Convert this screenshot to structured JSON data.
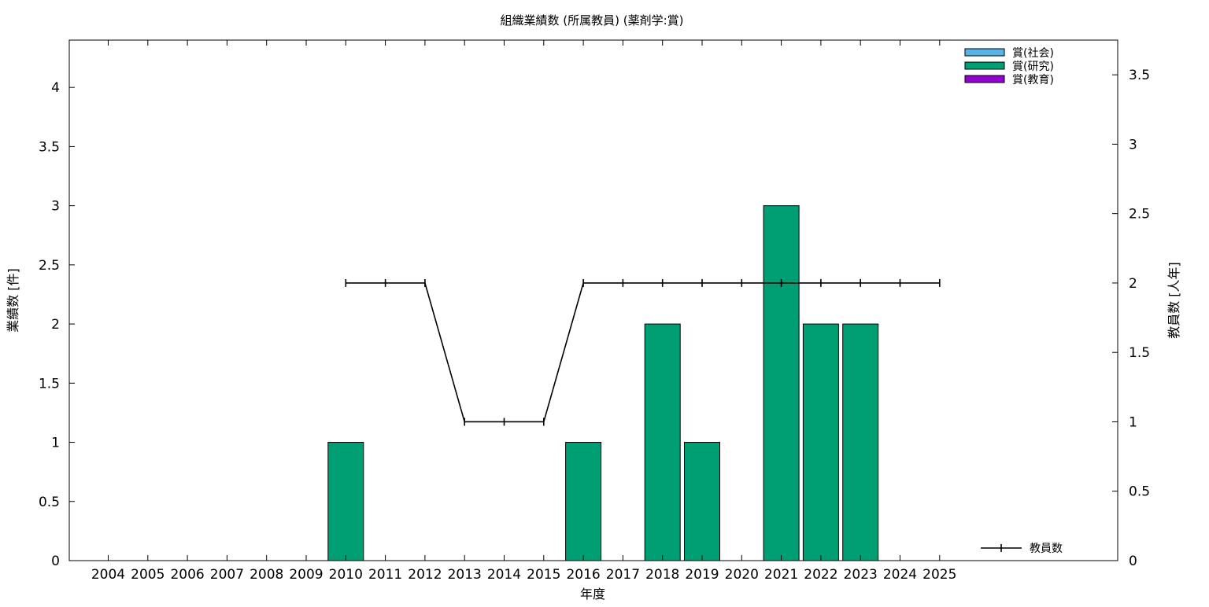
{
  "chart_data": {
    "type": "bar",
    "title": "組織業績数 (所属教員) (薬剤学:賞)",
    "xlabel": "年度",
    "ylabel": "業績数 [件]",
    "y2label": "教員数 [人年]",
    "categories": [
      "2004",
      "2005",
      "2006",
      "2007",
      "2008",
      "2009",
      "2010",
      "2011",
      "2012",
      "2013",
      "2014",
      "2015",
      "2016",
      "2017",
      "2018",
      "2019",
      "2020",
      "2021",
      "2022",
      "2023",
      "2024",
      "2025"
    ],
    "ylim": [
      0,
      4.4
    ],
    "y2lim": [
      0,
      3.75
    ],
    "yticks": [
      "0",
      "0.5",
      "1",
      "1.5",
      "2",
      "2.5",
      "3",
      "3.5",
      "4"
    ],
    "y2ticks": [
      "0",
      "0.5",
      "1",
      "1.5",
      "2",
      "2.5",
      "3",
      "3.5"
    ],
    "series": [
      {
        "name": "賞(社会)",
        "kind": "bar",
        "color": "#56b4e9",
        "values": [
          0,
          0,
          0,
          0,
          0,
          0,
          0,
          0,
          0,
          0,
          0,
          0,
          0,
          0,
          0,
          0,
          0,
          0,
          0,
          0,
          0,
          0
        ]
      },
      {
        "name": "賞(研究)",
        "kind": "bar",
        "color": "#009e73",
        "values": [
          0,
          0,
          0,
          0,
          0,
          0,
          1,
          0,
          0,
          0,
          0,
          0,
          1,
          0,
          2,
          1,
          0,
          3,
          2,
          2,
          0,
          0
        ]
      },
      {
        "name": "賞(教育)",
        "kind": "bar",
        "color": "#9400d3",
        "values": [
          0,
          0,
          0,
          0,
          0,
          0,
          0,
          0,
          0,
          0,
          0,
          0,
          0,
          0,
          0,
          0,
          0,
          0,
          0,
          0,
          0,
          0
        ]
      },
      {
        "name": "教員数",
        "kind": "line",
        "axis": "y2",
        "color": "#000000",
        "x": [
          "2010",
          "2011",
          "2012",
          "2013",
          "2014",
          "2015",
          "2016",
          "2017",
          "2018",
          "2019",
          "2020",
          "2021",
          "2022",
          "2023",
          "2024",
          "2025"
        ],
        "values": [
          2,
          2,
          2,
          1,
          1,
          1,
          2,
          2,
          2,
          2,
          2,
          2,
          2,
          2,
          2,
          2
        ]
      }
    ],
    "legend_position": "top-right",
    "grid": false
  }
}
